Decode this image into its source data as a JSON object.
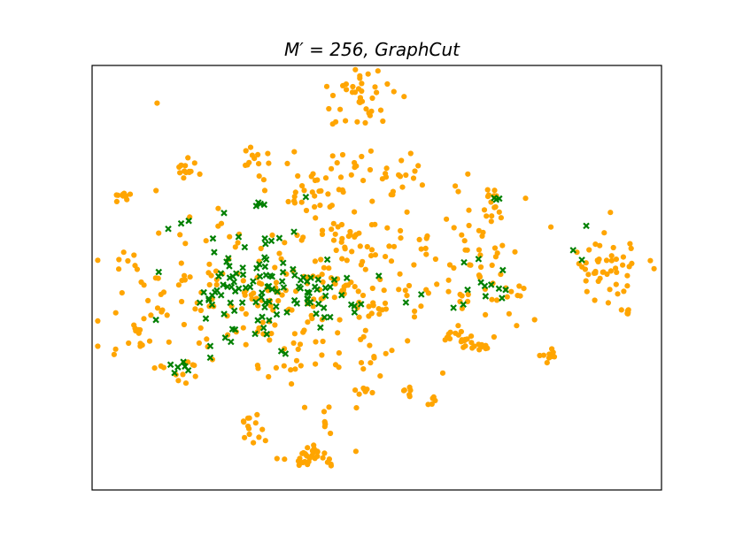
{
  "chart_data": {
    "type": "scatter",
    "title": "M′ = 256, GraphCut",
    "title_main": "M′ = 256, ",
    "title_method": "GraphCut",
    "xlabel": "",
    "ylabel": "",
    "grid": false,
    "ticks": false,
    "xlim": [
      0,
      100
    ],
    "ylim": [
      0,
      100
    ],
    "series": [
      {
        "marker": "circle",
        "color": "#FFA500",
        "clusters": [
          {
            "cx": 38,
            "cy": 92,
            "sx": 3.0,
            "sy": 1.5,
            "n": 32
          },
          {
            "cx": 28.5,
            "cy": 85.5,
            "sx": 1.3,
            "sy": 2.0,
            "n": 14
          },
          {
            "cx": 41.5,
            "cy": 84,
            "sx": 0.5,
            "sy": 2.2,
            "n": 6
          },
          {
            "cx": 48.5,
            "cy": 76.5,
            "sx": 1.2,
            "sy": 0.7,
            "n": 7
          },
          {
            "cx": 55.5,
            "cy": 77.5,
            "sx": 1.0,
            "sy": 1.0,
            "n": 6
          },
          {
            "cx": 59.5,
            "cy": 78.5,
            "sx": 0.6,
            "sy": 1.0,
            "n": 5
          },
          {
            "cx": 15,
            "cy": 72,
            "sx": 2.2,
            "sy": 1.8,
            "n": 12
          },
          {
            "cx": 8,
            "cy": 64,
            "sx": 1.5,
            "sy": 2.5,
            "n": 12
          },
          {
            "cx": 30,
            "cy": 55,
            "sx": 12,
            "sy": 11,
            "n": 190
          },
          {
            "cx": 49,
            "cy": 53,
            "sx": 6.5,
            "sy": 10,
            "n": 70
          },
          {
            "cx": 63.5,
            "cy": 63.5,
            "sx": 1.0,
            "sy": 0.8,
            "n": 6
          },
          {
            "cx": 66.5,
            "cy": 65,
            "sx": 2.2,
            "sy": 1.2,
            "n": 22
          },
          {
            "cx": 80,
            "cy": 68.5,
            "sx": 0.8,
            "sy": 0.6,
            "n": 10
          },
          {
            "cx": 68,
            "cy": 46,
            "sx": 4.5,
            "sy": 7,
            "n": 60
          },
          {
            "cx": 70.5,
            "cy": 32.5,
            "sx": 1.0,
            "sy": 2.0,
            "n": 14
          },
          {
            "cx": 91,
            "cy": 47,
            "sx": 4.0,
            "sy": 4.5,
            "n": 48
          },
          {
            "cx": 94,
            "cy": 58,
            "sx": 0.5,
            "sy": 0.4,
            "n": 6
          },
          {
            "cx": 5.5,
            "cy": 31,
            "sx": 0.7,
            "sy": 0.6,
            "n": 12
          },
          {
            "cx": 6.5,
            "cy": 46,
            "sx": 1.0,
            "sy": 1.2,
            "n": 6
          },
          {
            "cx": 16.5,
            "cy": 24,
            "sx": 0.8,
            "sy": 1.2,
            "n": 14
          },
          {
            "cx": 28.5,
            "cy": 22,
            "sx": 1.2,
            "sy": 2.0,
            "n": 12
          },
          {
            "cx": 48,
            "cy": 26,
            "sx": 6,
            "sy": 3,
            "n": 40
          },
          {
            "cx": 45.5,
            "cy": 40,
            "sx": 2.5,
            "sy": 2.5,
            "n": 20
          },
          {
            "cx": 47.5,
            "cy": 8,
            "sx": 2.5,
            "sy": 3.5,
            "n": 40
          },
          {
            "cx": 36,
            "cy": 29,
            "sx": 3.0,
            "sy": 2.5,
            "n": 20
          }
        ]
      },
      {
        "marker": "x",
        "color": "#008000",
        "clusters": [
          {
            "cx": 28,
            "cy": 52,
            "sx": 7,
            "sy": 7,
            "n": 100
          },
          {
            "cx": 38,
            "cy": 52,
            "sx": 3,
            "sy": 3,
            "n": 15
          },
          {
            "cx": 44,
            "cy": 56,
            "sx": 5,
            "sy": 4,
            "n": 12
          },
          {
            "cx": 15.5,
            "cy": 71,
            "sx": 0.8,
            "sy": 1.2,
            "n": 6
          },
          {
            "cx": 68,
            "cy": 50,
            "sx": 4,
            "sy": 4,
            "n": 14
          },
          {
            "cx": 71,
            "cy": 31.5,
            "sx": 0.6,
            "sy": 0.6,
            "n": 3
          },
          {
            "cx": 86,
            "cy": 45,
            "sx": 1.5,
            "sy": 4,
            "n": 3
          },
          {
            "cx": 29,
            "cy": 33,
            "sx": 1,
            "sy": 0.6,
            "n": 4
          }
        ]
      }
    ]
  }
}
